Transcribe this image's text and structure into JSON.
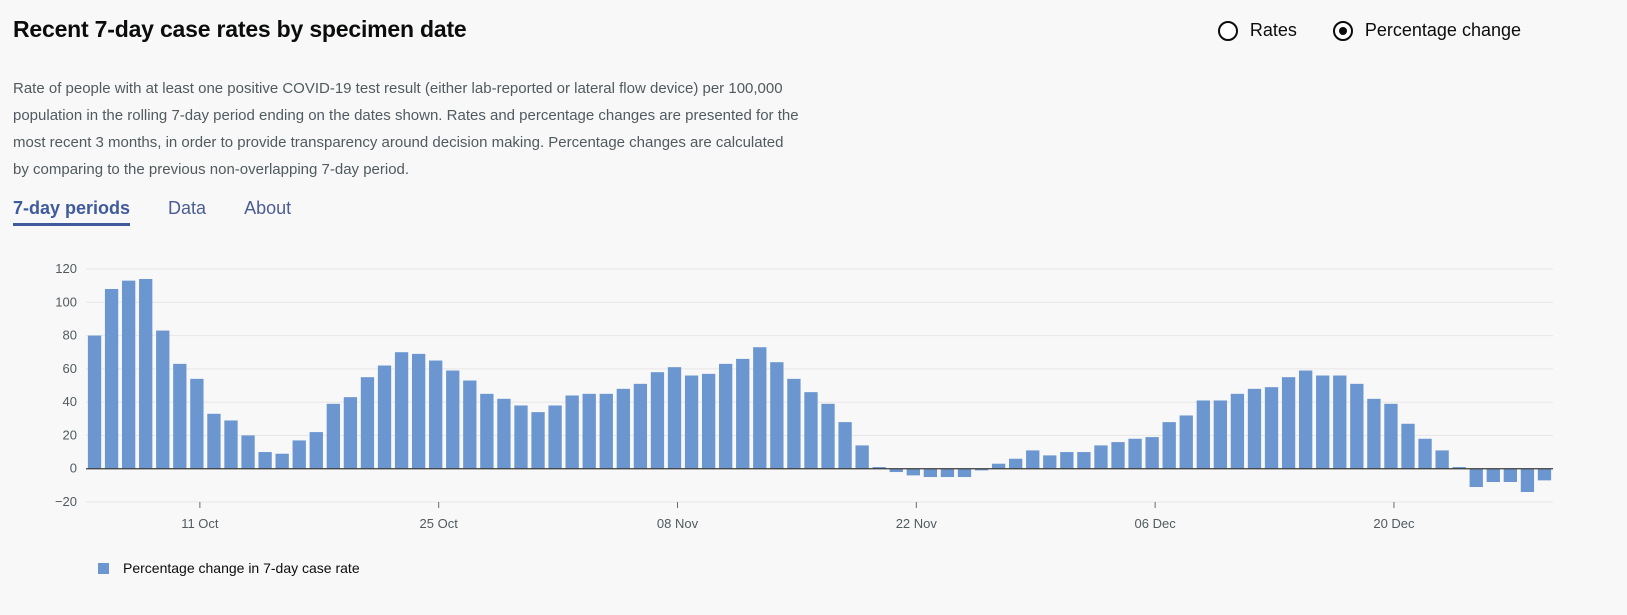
{
  "header": {
    "title": "Recent 7-day case rates by specimen date",
    "description": "Rate of people with at least one positive COVID-19 test result (either lab-reported or lateral flow device) per 100,000 population in the rolling 7-day period ending on the dates shown. Rates and percentage changes are presented for the most recent 3 months, in order to provide transparency around decision making. Percentage changes are calculated by comparing to the previous non-overlapping 7-day period."
  },
  "radios": {
    "rates_label": "Rates",
    "pct_label": "Percentage change",
    "selected": "Percentage change"
  },
  "tabs": [
    {
      "label": "7-day periods",
      "active": true
    },
    {
      "label": "Data",
      "active": false
    },
    {
      "label": "About",
      "active": false
    }
  ],
  "colors": {
    "bar": "#6b96cf",
    "tab_active": "#3f5b9c"
  },
  "chart_data": {
    "type": "bar",
    "title": "",
    "ylim": [
      -20,
      120
    ],
    "y_ticks": [
      -20,
      0,
      20,
      40,
      60,
      80,
      100,
      120
    ],
    "x_tick_labels": [
      {
        "label": "11 Oct",
        "index": 6
      },
      {
        "label": "25 Oct",
        "index": 20
      },
      {
        "label": "08 Nov",
        "index": 34
      },
      {
        "label": "22 Nov",
        "index": 48
      },
      {
        "label": "06 Dec",
        "index": 62
      },
      {
        "label": "20 Dec",
        "index": 76
      }
    ],
    "grid": true,
    "legend": "bottom-left",
    "series": [
      {
        "name": "Percentage change in 7-day case rate",
        "values": [
          80,
          108,
          113,
          114,
          83,
          63,
          54,
          33,
          29,
          20,
          10,
          9,
          17,
          22,
          39,
          43,
          55,
          62,
          70,
          69,
          65,
          59,
          53,
          45,
          42,
          38,
          34,
          38,
          44,
          45,
          45,
          48,
          51,
          58,
          61,
          56,
          57,
          63,
          66,
          73,
          64,
          54,
          46,
          39,
          28,
          14,
          1,
          -2,
          -4,
          -5,
          -5,
          -5,
          -1,
          3,
          6,
          11,
          8,
          10,
          10,
          14,
          16,
          18,
          19,
          28,
          32,
          41,
          41,
          45,
          48,
          49,
          55,
          59,
          56,
          56,
          51,
          42,
          39,
          27,
          18,
          11,
          1,
          -11,
          -8,
          -8,
          -14,
          -7
        ]
      }
    ]
  }
}
